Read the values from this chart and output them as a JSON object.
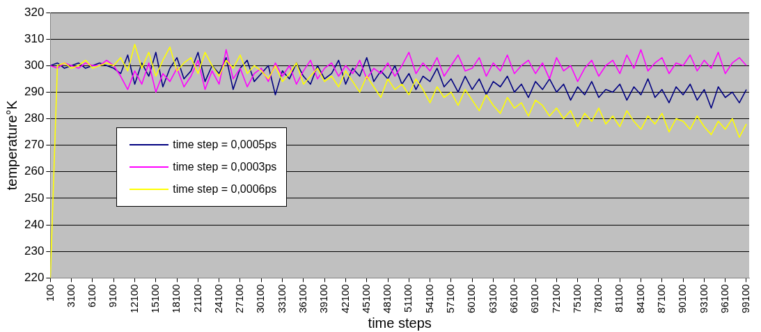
{
  "chart_data": {
    "type": "line",
    "xlabel": "time steps",
    "ylabel": "temperature°K",
    "x": [
      100,
      1100,
      2100,
      3100,
      4100,
      5100,
      6100,
      7100,
      8100,
      9100,
      10100,
      11100,
      12100,
      13100,
      14100,
      15100,
      16100,
      17100,
      18100,
      19100,
      20100,
      21100,
      22100,
      23100,
      24100,
      25100,
      26100,
      27100,
      28100,
      29100,
      30100,
      31100,
      32100,
      33100,
      34100,
      35100,
      36100,
      37100,
      38100,
      39100,
      40100,
      41100,
      42100,
      43100,
      44100,
      45100,
      46100,
      47100,
      48100,
      49100,
      50100,
      51100,
      52100,
      53100,
      54100,
      55100,
      56100,
      57100,
      58100,
      59100,
      60100,
      61100,
      62100,
      63100,
      64100,
      65100,
      66100,
      67100,
      68100,
      69100,
      70100,
      71100,
      72100,
      73100,
      74100,
      75100,
      76100,
      77100,
      78100,
      79100,
      80100,
      81100,
      82100,
      83100,
      84100,
      85100,
      86100,
      87100,
      88100,
      89100,
      90100,
      91100,
      92100,
      93100,
      94100,
      95100,
      96100,
      97100,
      98100,
      99100
    ],
    "xlim": [
      100,
      99500
    ],
    "xticks": [
      100,
      3100,
      6100,
      9100,
      12100,
      15100,
      18100,
      21100,
      24100,
      27100,
      30100,
      33100,
      36100,
      39100,
      42100,
      45100,
      48100,
      51100,
      54100,
      57100,
      60100,
      63100,
      66100,
      69100,
      72100,
      75100,
      78100,
      81100,
      84100,
      87100,
      90100,
      93100,
      96100,
      99100
    ],
    "ylim": [
      220,
      320
    ],
    "yticks": [
      220,
      230,
      240,
      250,
      260,
      270,
      280,
      290,
      300,
      310,
      320
    ],
    "grid": "y",
    "legend": "left",
    "series": [
      {
        "name": "time step = 0,0005ps",
        "color": "#000080",
        "values": [
          300,
          301,
          299,
          300,
          301,
          299,
          300,
          301,
          300,
          299,
          297,
          304,
          293,
          301,
          296,
          305,
          292,
          299,
          303,
          295,
          298,
          305,
          294,
          300,
          297,
          303,
          291,
          299,
          302,
          294,
          297,
          300,
          289,
          298,
          295,
          301,
          296,
          293,
          300,
          295,
          297,
          302,
          293,
          299,
          296,
          303,
          294,
          298,
          295,
          300,
          293,
          297,
          291,
          296,
          294,
          299,
          292,
          295,
          290,
          296,
          291,
          295,
          289,
          294,
          292,
          296,
          290,
          293,
          288,
          294,
          291,
          295,
          290,
          293,
          287,
          292,
          289,
          294,
          288,
          291,
          290,
          293,
          287,
          292,
          289,
          295,
          288,
          291,
          286,
          292,
          289,
          293,
          287,
          291,
          284,
          292,
          288,
          290,
          286,
          291
        ]
      },
      {
        "name": "time step = 0,0003ps",
        "color": "#ff00ff",
        "values": [
          300,
          299,
          301,
          300,
          299,
          301,
          300,
          300,
          302,
          300,
          296,
          291,
          298,
          293,
          301,
          290,
          297,
          294,
          299,
          292,
          296,
          302,
          291,
          298,
          293,
          306,
          295,
          299,
          292,
          297,
          299,
          294,
          301,
          296,
          300,
          293,
          298,
          302,
          295,
          299,
          301,
          296,
          300,
          297,
          302,
          295,
          299,
          297,
          301,
          296,
          300,
          305,
          297,
          301,
          298,
          303,
          296,
          300,
          304,
          298,
          299,
          303,
          296,
          301,
          298,
          304,
          297,
          300,
          302,
          297,
          301,
          295,
          303,
          298,
          300,
          294,
          299,
          302,
          296,
          300,
          302,
          297,
          304,
          299,
          306,
          298,
          301,
          303,
          297,
          301,
          300,
          304,
          298,
          302,
          299,
          305,
          297,
          301,
          303,
          300
        ]
      },
      {
        "name": "time step = 0,0006ps",
        "color": "#ffff00",
        "values": [
          220,
          300,
          301,
          299,
          300,
          302,
          299,
          300,
          301,
          300,
          303,
          298,
          308,
          299,
          305,
          296,
          302,
          307,
          298,
          301,
          303,
          297,
          305,
          300,
          296,
          302,
          299,
          304,
          297,
          300,
          298,
          295,
          300,
          294,
          297,
          301,
          293,
          296,
          299,
          294,
          296,
          292,
          298,
          294,
          290,
          296,
          292,
          288,
          295,
          291,
          293,
          289,
          295,
          291,
          286,
          292,
          288,
          290,
          285,
          291,
          287,
          283,
          289,
          285,
          282,
          288,
          284,
          286,
          281,
          287,
          285,
          281,
          284,
          280,
          283,
          277,
          282,
          279,
          284,
          278,
          281,
          277,
          283,
          279,
          276,
          281,
          278,
          282,
          275,
          280,
          279,
          276,
          281,
          277,
          274,
          279,
          276,
          280,
          273,
          278
        ]
      }
    ]
  }
}
